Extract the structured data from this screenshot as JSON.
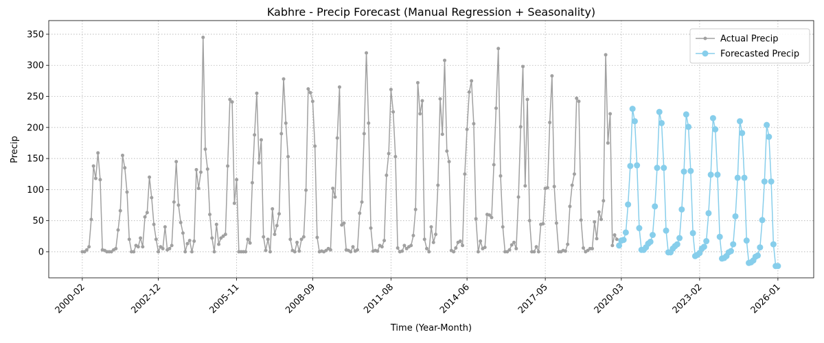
{
  "chart_data": {
    "type": "line",
    "title": "Kabhre - Precip Forecast (Manual Regression + Seasonality)",
    "x_label": "Time (Year-Month)",
    "y_label": "Precip",
    "xlim": [
      "1998-11",
      "2027-05"
    ],
    "ylim": [
      -42,
      372
    ],
    "xticks": [
      "2000-02",
      "2002-12",
      "2005-11",
      "2008-09",
      "2011-08",
      "2014-06",
      "2017-05",
      "2020-03",
      "2023-02",
      "2026-01"
    ],
    "yticks": [
      0,
      50,
      100,
      150,
      200,
      250,
      300,
      350
    ],
    "grid": true,
    "legend": "upper right",
    "series": [
      {
        "name": "Actual Precip",
        "color": "#a0a0a0",
        "marker_size": 2.5,
        "x": [
          "2000-02",
          "2000-03",
          "2000-04",
          "2000-05",
          "2000-06",
          "2000-07",
          "2000-08",
          "2000-09",
          "2000-10",
          "2000-11",
          "2000-12",
          "2001-01",
          "2001-02",
          "2001-03",
          "2001-04",
          "2001-05",
          "2001-06",
          "2001-07",
          "2001-08",
          "2001-09",
          "2001-10",
          "2001-11",
          "2001-12",
          "2002-01",
          "2002-02",
          "2002-03",
          "2002-04",
          "2002-05",
          "2002-06",
          "2002-07",
          "2002-08",
          "2002-09",
          "2002-10",
          "2002-11",
          "2002-12",
          "2003-01",
          "2003-02",
          "2003-03",
          "2003-04",
          "2003-05",
          "2003-06",
          "2003-07",
          "2003-08",
          "2003-09",
          "2003-10",
          "2003-11",
          "2003-12",
          "2004-01",
          "2004-02",
          "2004-03",
          "2004-04",
          "2004-05",
          "2004-06",
          "2004-07",
          "2004-08",
          "2004-09",
          "2004-10",
          "2004-11",
          "2004-12",
          "2005-01",
          "2005-02",
          "2005-03",
          "2005-04",
          "2005-05",
          "2005-06",
          "2005-07",
          "2005-08",
          "2005-09",
          "2005-10",
          "2005-11",
          "2005-12",
          "2006-01",
          "2006-02",
          "2006-03",
          "2006-04",
          "2006-05",
          "2006-06",
          "2006-07",
          "2006-08",
          "2006-09",
          "2006-10",
          "2006-11",
          "2006-12",
          "2007-01",
          "2007-02",
          "2007-03",
          "2007-04",
          "2007-05",
          "2007-06",
          "2007-07",
          "2007-08",
          "2007-09",
          "2007-10",
          "2007-11",
          "2007-12",
          "2008-01",
          "2008-02",
          "2008-03",
          "2008-04",
          "2008-05",
          "2008-06",
          "2008-07",
          "2008-08",
          "2008-09",
          "2008-10",
          "2008-11",
          "2008-12",
          "2009-01",
          "2009-02",
          "2009-03",
          "2009-04",
          "2009-05",
          "2009-06",
          "2009-07",
          "2009-08",
          "2009-09",
          "2009-10",
          "2009-11",
          "2009-12",
          "2010-01",
          "2010-02",
          "2010-03",
          "2010-04",
          "2010-05",
          "2010-06",
          "2010-07",
          "2010-08",
          "2010-09",
          "2010-10",
          "2010-11",
          "2010-12",
          "2011-01",
          "2011-02",
          "2011-03",
          "2011-04",
          "2011-05",
          "2011-06",
          "2011-07",
          "2011-08",
          "2011-09",
          "2011-10",
          "2011-11",
          "2011-12",
          "2012-01",
          "2012-02",
          "2012-03",
          "2012-04",
          "2012-05",
          "2012-06",
          "2012-07",
          "2012-08",
          "2012-09",
          "2012-10",
          "2012-11",
          "2012-12",
          "2013-01",
          "2013-02",
          "2013-03",
          "2013-04",
          "2013-05",
          "2013-06",
          "2013-07",
          "2013-08",
          "2013-09",
          "2013-10",
          "2013-11",
          "2013-12",
          "2014-01",
          "2014-02",
          "2014-03",
          "2014-04",
          "2014-05",
          "2014-06",
          "2014-07",
          "2014-08",
          "2014-09",
          "2014-10",
          "2014-11",
          "2014-12",
          "2015-01",
          "2015-02",
          "2015-03",
          "2015-04",
          "2015-05",
          "2015-06",
          "2015-07",
          "2015-08",
          "2015-09",
          "2015-10",
          "2015-11",
          "2015-12",
          "2016-01",
          "2016-02",
          "2016-03",
          "2016-04",
          "2016-05",
          "2016-06",
          "2016-07",
          "2016-08",
          "2016-09",
          "2016-10",
          "2016-11",
          "2016-12",
          "2017-01",
          "2017-02",
          "2017-03",
          "2017-04",
          "2017-05",
          "2017-06",
          "2017-07",
          "2017-08",
          "2017-09",
          "2017-10",
          "2017-11",
          "2017-12",
          "2018-01",
          "2018-02",
          "2018-03",
          "2018-04",
          "2018-05",
          "2018-06",
          "2018-07",
          "2018-08",
          "2018-09",
          "2018-10",
          "2018-11",
          "2018-12",
          "2019-01",
          "2019-02",
          "2019-03",
          "2019-04",
          "2019-05",
          "2019-06",
          "2019-07",
          "2019-08",
          "2019-09",
          "2019-10",
          "2019-11",
          "2019-12",
          "2020-01"
        ],
        "values": [
          0,
          0,
          3,
          8,
          52,
          138,
          118,
          159,
          116,
          3,
          2,
          0,
          0,
          0,
          3,
          5,
          35,
          66,
          155,
          135,
          96,
          20,
          0,
          0,
          10,
          8,
          22,
          8,
          56,
          63,
          120,
          87,
          44,
          20,
          0,
          8,
          5,
          40,
          3,
          5,
          10,
          80,
          145,
          75,
          47,
          30,
          0,
          13,
          18,
          0,
          17,
          132,
          102,
          128,
          345,
          165,
          133,
          60,
          22,
          0,
          44,
          12,
          22,
          25,
          28,
          138,
          245,
          241,
          78,
          116,
          0,
          0,
          0,
          0,
          20,
          14,
          111,
          188,
          255,
          143,
          180,
          24,
          2,
          20,
          0,
          69,
          28,
          42,
          61,
          190,
          278,
          207,
          153,
          20,
          2,
          0,
          15,
          1,
          20,
          24,
          99,
          262,
          256,
          242,
          170,
          23,
          0,
          1,
          0,
          2,
          5,
          3,
          102,
          88,
          183,
          265,
          43,
          46,
          3,
          2,
          0,
          8,
          1,
          3,
          62,
          80,
          190,
          320,
          207,
          38,
          1,
          2,
          1,
          10,
          8,
          18,
          123,
          158,
          261,
          225,
          153,
          6,
          0,
          1,
          10,
          5,
          8,
          10,
          26,
          68,
          272,
          222,
          243,
          20,
          5,
          0,
          40,
          15,
          28,
          107,
          246,
          189,
          308,
          162,
          145,
          2,
          0,
          6,
          15,
          17,
          10,
          125,
          197,
          257,
          275,
          206,
          53,
          0,
          17,
          5,
          7,
          60,
          59,
          55,
          140,
          231,
          327,
          122,
          40,
          0,
          0,
          3,
          11,
          15,
          5,
          88,
          201,
          298,
          106,
          245,
          50,
          0,
          0,
          8,
          0,
          44,
          45,
          102,
          103,
          208,
          283,
          105,
          46,
          0,
          0,
          2,
          1,
          12,
          73,
          107,
          125,
          247,
          242,
          51,
          6,
          0,
          2,
          5,
          5,
          48,
          21,
          64,
          52,
          82,
          317,
          175,
          222,
          10,
          27,
          20
        ]
      },
      {
        "name": "Forecasted Precip",
        "color": "#87ceeb",
        "marker_size": 4.5,
        "x": [
          "2020-02",
          "2020-03",
          "2020-04",
          "2020-05",
          "2020-06",
          "2020-07",
          "2020-08",
          "2020-09",
          "2020-10",
          "2020-11",
          "2020-12",
          "2021-01",
          "2021-02",
          "2021-03",
          "2021-04",
          "2021-05",
          "2021-06",
          "2021-07",
          "2021-08",
          "2021-09",
          "2021-10",
          "2021-11",
          "2021-12",
          "2022-01",
          "2022-02",
          "2022-03",
          "2022-04",
          "2022-05",
          "2022-06",
          "2022-07",
          "2022-08",
          "2022-09",
          "2022-10",
          "2022-11",
          "2022-12",
          "2023-01",
          "2023-02",
          "2023-03",
          "2023-04",
          "2023-05",
          "2023-06",
          "2023-07",
          "2023-08",
          "2023-09",
          "2023-10",
          "2023-11",
          "2023-12",
          "2024-01",
          "2024-02",
          "2024-03",
          "2024-04",
          "2024-05",
          "2024-06",
          "2024-07",
          "2024-08",
          "2024-09",
          "2024-10",
          "2024-11",
          "2024-12",
          "2025-01",
          "2025-02",
          "2025-03",
          "2025-04",
          "2025-05",
          "2025-06",
          "2025-07",
          "2025-08",
          "2025-09",
          "2025-10",
          "2025-11",
          "2025-12",
          "2026-01"
        ],
        "values": [
          10,
          18,
          19,
          31,
          76,
          138,
          230,
          210,
          139,
          38,
          3,
          3,
          7,
          13,
          16,
          27,
          73,
          135,
          225,
          207,
          135,
          34,
          -1,
          -1,
          5,
          9,
          12,
          22,
          68,
          129,
          221,
          201,
          130,
          30,
          -7,
          -5,
          -2,
          5,
          8,
          17,
          62,
          124,
          215,
          197,
          124,
          24,
          -11,
          -10,
          -7,
          -1,
          1,
          12,
          57,
          119,
          210,
          191,
          119,
          18,
          -18,
          -17,
          -14,
          -8,
          -6,
          7,
          51,
          113,
          204,
          185,
          113,
          12,
          -23,
          -23
        ]
      }
    ]
  }
}
